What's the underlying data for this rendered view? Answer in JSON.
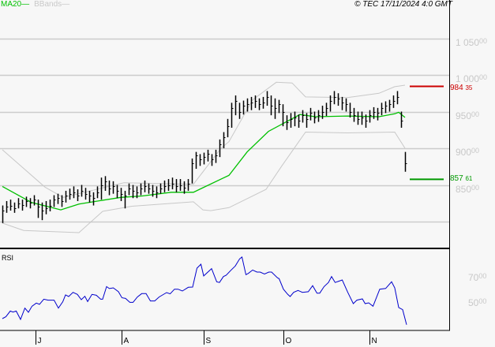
{
  "header": {
    "legend_ma": "MA20",
    "legend_bbands": "BBands",
    "copyright": "© TEC 17/11/2024 4:0 GMT"
  },
  "colors": {
    "ma20": "#00c000",
    "bbands": "#c8c8c8",
    "bars": "#000000",
    "rsi": "#0000cc",
    "resistance": "#cc0000",
    "support": "#009900",
    "grid": "#cccccc",
    "axis_text": "#c8c8c8"
  },
  "price_axis": [
    {
      "value": 1050,
      "int": "1 050",
      "dec": "00"
    },
    {
      "value": 1000,
      "int": "1 000",
      "dec": "00"
    },
    {
      "value": 950,
      "int": "950",
      "dec": "00"
    },
    {
      "value": 900,
      "int": "900",
      "dec": "00"
    },
    {
      "value": 850,
      "int": "850",
      "dec": "00"
    }
  ],
  "gridlines": [
    1050,
    1000,
    950,
    900,
    850,
    800
  ],
  "levels": {
    "resistance": {
      "value": 984.35,
      "int": "984",
      "dec": "35"
    },
    "support": {
      "value": 857.61,
      "int": "857",
      "dec": "61"
    }
  },
  "rsi_panel": {
    "title": "RSI",
    "axis": [
      {
        "value": 70,
        "int": "70",
        "dec": "00"
      },
      {
        "value": 50,
        "int": "50",
        "dec": "00"
      }
    ]
  },
  "months": [
    {
      "label": "J",
      "day": 8.4
    },
    {
      "label": "A",
      "day": 30.2
    },
    {
      "label": "S",
      "day": 51
    },
    {
      "label": "O",
      "day": 71.2
    },
    {
      "label": "N",
      "day": 93
    }
  ],
  "chart_data": {
    "type": "ohlc",
    "price_range": [
      780,
      1105
    ],
    "bars_hlc": [
      [
        822,
        798,
        815
      ],
      [
        828,
        812,
        820
      ],
      [
        830,
        815,
        822
      ],
      [
        826,
        812,
        818
      ],
      [
        832,
        818,
        825
      ],
      [
        830,
        815,
        823
      ],
      [
        834,
        820,
        828
      ],
      [
        832,
        818,
        826
      ],
      [
        836,
        822,
        830
      ],
      [
        830,
        805,
        820
      ],
      [
        826,
        802,
        815
      ],
      [
        828,
        810,
        818
      ],
      [
        830,
        814,
        822
      ],
      [
        836,
        820,
        830
      ],
      [
        838,
        824,
        832
      ],
      [
        836,
        820,
        828
      ],
      [
        842,
        826,
        835
      ],
      [
        845,
        830,
        838
      ],
      [
        848,
        832,
        840
      ],
      [
        844,
        828,
        836
      ],
      [
        850,
        834,
        842
      ],
      [
        846,
        830,
        838
      ],
      [
        842,
        826,
        835
      ],
      [
        840,
        822,
        832
      ],
      [
        848,
        832,
        840
      ],
      [
        860,
        830,
        850
      ],
      [
        862,
        842,
        855
      ],
      [
        856,
        836,
        845
      ],
      [
        855,
        838,
        848
      ],
      [
        850,
        832,
        842
      ],
      [
        846,
        828,
        838
      ],
      [
        842,
        818,
        835
      ],
      [
        852,
        836,
        845
      ],
      [
        850,
        832,
        842
      ],
      [
        848,
        832,
        840
      ],
      [
        852,
        836,
        845
      ],
      [
        856,
        840,
        848
      ],
      [
        852,
        838,
        845
      ],
      [
        850,
        834,
        842
      ],
      [
        848,
        832,
        840
      ],
      [
        852,
        838,
        845
      ],
      [
        856,
        840,
        848
      ],
      [
        858,
        842,
        850
      ],
      [
        860,
        844,
        852
      ],
      [
        858,
        840,
        848
      ],
      [
        858,
        842,
        850
      ],
      [
        855,
        838,
        846
      ],
      [
        858,
        842,
        852
      ],
      [
        886,
        852,
        880
      ],
      [
        895,
        872,
        890
      ],
      [
        892,
        876,
        885
      ],
      [
        894,
        878,
        888
      ],
      [
        898,
        882,
        892
      ],
      [
        892,
        876,
        885
      ],
      [
        898,
        880,
        890
      ],
      [
        912,
        888,
        905
      ],
      [
        922,
        900,
        915
      ],
      [
        940,
        915,
        930
      ],
      [
        962,
        928,
        955
      ],
      [
        972,
        945,
        965
      ],
      [
        962,
        940,
        950
      ],
      [
        965,
        946,
        958
      ],
      [
        968,
        950,
        960
      ],
      [
        970,
        952,
        962
      ],
      [
        972,
        955,
        965
      ],
      [
        968,
        952,
        960
      ],
      [
        970,
        954,
        962
      ],
      [
        978,
        958,
        970
      ],
      [
        972,
        945,
        958
      ],
      [
        968,
        940,
        955
      ],
      [
        966,
        948,
        960
      ],
      [
        960,
        930,
        950
      ],
      [
        945,
        925,
        935
      ],
      [
        948,
        928,
        940
      ],
      [
        950,
        930,
        942
      ],
      [
        946,
        928,
        938
      ],
      [
        952,
        935,
        945
      ],
      [
        948,
        928,
        940
      ],
      [
        955,
        938,
        948
      ],
      [
        950,
        934,
        942
      ],
      [
        952,
        936,
        945
      ],
      [
        958,
        940,
        950
      ],
      [
        962,
        944,
        955
      ],
      [
        972,
        950,
        965
      ],
      [
        978,
        960,
        970
      ],
      [
        975,
        958,
        968
      ],
      [
        970,
        952,
        962
      ],
      [
        968,
        950,
        960
      ],
      [
        962,
        942,
        950
      ],
      [
        955,
        936,
        945
      ],
      [
        950,
        932,
        940
      ],
      [
        950,
        932,
        942
      ],
      [
        946,
        928,
        938
      ],
      [
        952,
        935,
        945
      ],
      [
        956,
        940,
        950
      ],
      [
        955,
        938,
        948
      ],
      [
        962,
        945,
        955
      ],
      [
        964,
        948,
        958
      ],
      [
        966,
        950,
        960
      ],
      [
        972,
        955,
        965
      ],
      [
        978,
        960,
        970
      ],
      [
        950,
        928,
        938
      ],
      [
        895,
        868,
        880
      ]
    ],
    "ma20": [
      [
        0,
        848
      ],
      [
        7.4,
        826
      ],
      [
        14.8,
        816
      ],
      [
        19.4,
        824
      ],
      [
        30,
        833
      ],
      [
        35.4,
        835
      ],
      [
        42.8,
        840
      ],
      [
        48.4,
        840
      ],
      [
        55.4,
        858
      ],
      [
        57.4,
        863
      ],
      [
        62,
        895
      ],
      [
        67.4,
        923
      ],
      [
        75.4,
        946
      ],
      [
        78,
        944
      ],
      [
        79.4,
        943
      ],
      [
        87.4,
        944
      ],
      [
        95.4,
        943
      ],
      [
        99.4,
        947
      ],
      [
        100.4,
        949
      ],
      [
        102,
        942
      ]
    ],
    "bband_upper": [
      [
        0,
        898
      ],
      [
        10.8,
        847
      ],
      [
        15.4,
        833
      ],
      [
        30.8,
        853
      ],
      [
        48.4,
        851
      ],
      [
        55.4,
        900
      ],
      [
        57.4,
        909
      ],
      [
        63.4,
        966
      ],
      [
        69.4,
        990
      ],
      [
        73.4,
        989
      ],
      [
        76.8,
        970
      ],
      [
        87.4,
        969
      ],
      [
        95.4,
        975
      ],
      [
        99.4,
        984
      ],
      [
        102,
        986
      ]
    ],
    "bband_lower": [
      [
        0,
        798
      ],
      [
        5.4,
        788
      ],
      [
        19.4,
        785
      ],
      [
        25.4,
        814
      ],
      [
        32.8,
        821
      ],
      [
        48.4,
        827
      ],
      [
        50.8,
        816
      ],
      [
        52.8,
        815
      ],
      [
        57.4,
        819
      ],
      [
        66.8,
        844
      ],
      [
        70.8,
        876
      ],
      [
        76.8,
        922
      ],
      [
        87.4,
        921
      ],
      [
        99.4,
        922
      ],
      [
        102,
        900
      ]
    ],
    "rsi": [
      [
        0,
        37.5
      ],
      [
        0.9,
        39
      ],
      [
        2,
        43.5
      ],
      [
        2.7,
        42.7
      ],
      [
        3.5,
        43.5
      ],
      [
        4.6,
        36.9
      ],
      [
        5.7,
        45.8
      ],
      [
        6.6,
        42.5
      ],
      [
        7.5,
        47.3
      ],
      [
        8.6,
        49.8
      ],
      [
        9.4,
        48.8
      ],
      [
        10.5,
        52.9
      ],
      [
        11.6,
        52.1
      ],
      [
        13.1,
        52.1
      ],
      [
        14.2,
        45.8
      ],
      [
        15.3,
        50.8
      ],
      [
        16,
        56.3
      ],
      [
        16.8,
        55
      ],
      [
        17.9,
        58.3
      ],
      [
        19,
        56.7
      ],
      [
        20,
        52.5
      ],
      [
        20.9,
        55.2
      ],
      [
        21.6,
        51
      ],
      [
        22.7,
        56.7
      ],
      [
        23.8,
        56
      ],
      [
        24.9,
        52.9
      ],
      [
        25.4,
        52.9
      ],
      [
        26.4,
        62.9
      ],
      [
        27.1,
        61.3
      ],
      [
        28.1,
        61.9
      ],
      [
        29.4,
        58.8
      ],
      [
        30.3,
        54
      ],
      [
        31.2,
        53.5
      ],
      [
        32.3,
        50.4
      ],
      [
        33.1,
        50.4
      ],
      [
        34.2,
        54.6
      ],
      [
        35.3,
        57.3
      ],
      [
        36.4,
        57.3
      ],
      [
        37.5,
        51.5
      ],
      [
        38.6,
        51.5
      ],
      [
        39.7,
        54.6
      ],
      [
        41.6,
        58.1
      ],
      [
        42.5,
        57.1
      ],
      [
        43.6,
        60.8
      ],
      [
        44.5,
        60.8
      ],
      [
        45.6,
        59.4
      ],
      [
        47.1,
        62.3
      ],
      [
        48.2,
        62.5
      ],
      [
        49.3,
        77.5
      ],
      [
        50.3,
        80.6
      ],
      [
        51,
        71.3
      ],
      [
        53,
        77.1
      ],
      [
        54.3,
        66.7
      ],
      [
        55,
        66.1
      ],
      [
        56,
        70.8
      ],
      [
        56.7,
        71.9
      ],
      [
        57.9,
        75.8
      ],
      [
        59,
        79.2
      ],
      [
        60.1,
        84.8
      ],
      [
        60.7,
        86.3
      ],
      [
        61.7,
        72.3
      ],
      [
        62.3,
        73.3
      ],
      [
        63.4,
        76
      ],
      [
        64.5,
        74.4
      ],
      [
        65.3,
        74.4
      ],
      [
        66.4,
        72.9
      ],
      [
        67.5,
        74.4
      ],
      [
        68.2,
        74.4
      ],
      [
        69.7,
        69.8
      ],
      [
        70.1,
        69.2
      ],
      [
        71.2,
        60.8
      ],
      [
        72.3,
        56.7
      ],
      [
        72.9,
        55
      ],
      [
        73.8,
        58.3
      ],
      [
        74.9,
        59.8
      ],
      [
        76,
        58.3
      ],
      [
        77.5,
        58.8
      ],
      [
        78.6,
        63.6
      ],
      [
        79.7,
        57.7
      ],
      [
        80.4,
        57.7
      ],
      [
        81.5,
        62.9
      ],
      [
        82.6,
        66.1
      ],
      [
        83.4,
        70.8
      ],
      [
        84.3,
        66.1
      ],
      [
        85.2,
        67.1
      ],
      [
        86.1,
        68.1
      ],
      [
        87.5,
        58.3
      ],
      [
        88.9,
        49.4
      ],
      [
        89.8,
        52.1
      ],
      [
        91.2,
        53.1
      ],
      [
        91.9,
        49.4
      ],
      [
        92.8,
        50
      ],
      [
        93.9,
        47.3
      ],
      [
        95.6,
        60.8
      ],
      [
        97.1,
        61.4
      ],
      [
        98.6,
        66.7
      ],
      [
        99.4,
        61.9
      ],
      [
        100.4,
        46.3
      ],
      [
        101.4,
        44.6
      ],
      [
        102.4,
        32.7
      ]
    ]
  }
}
